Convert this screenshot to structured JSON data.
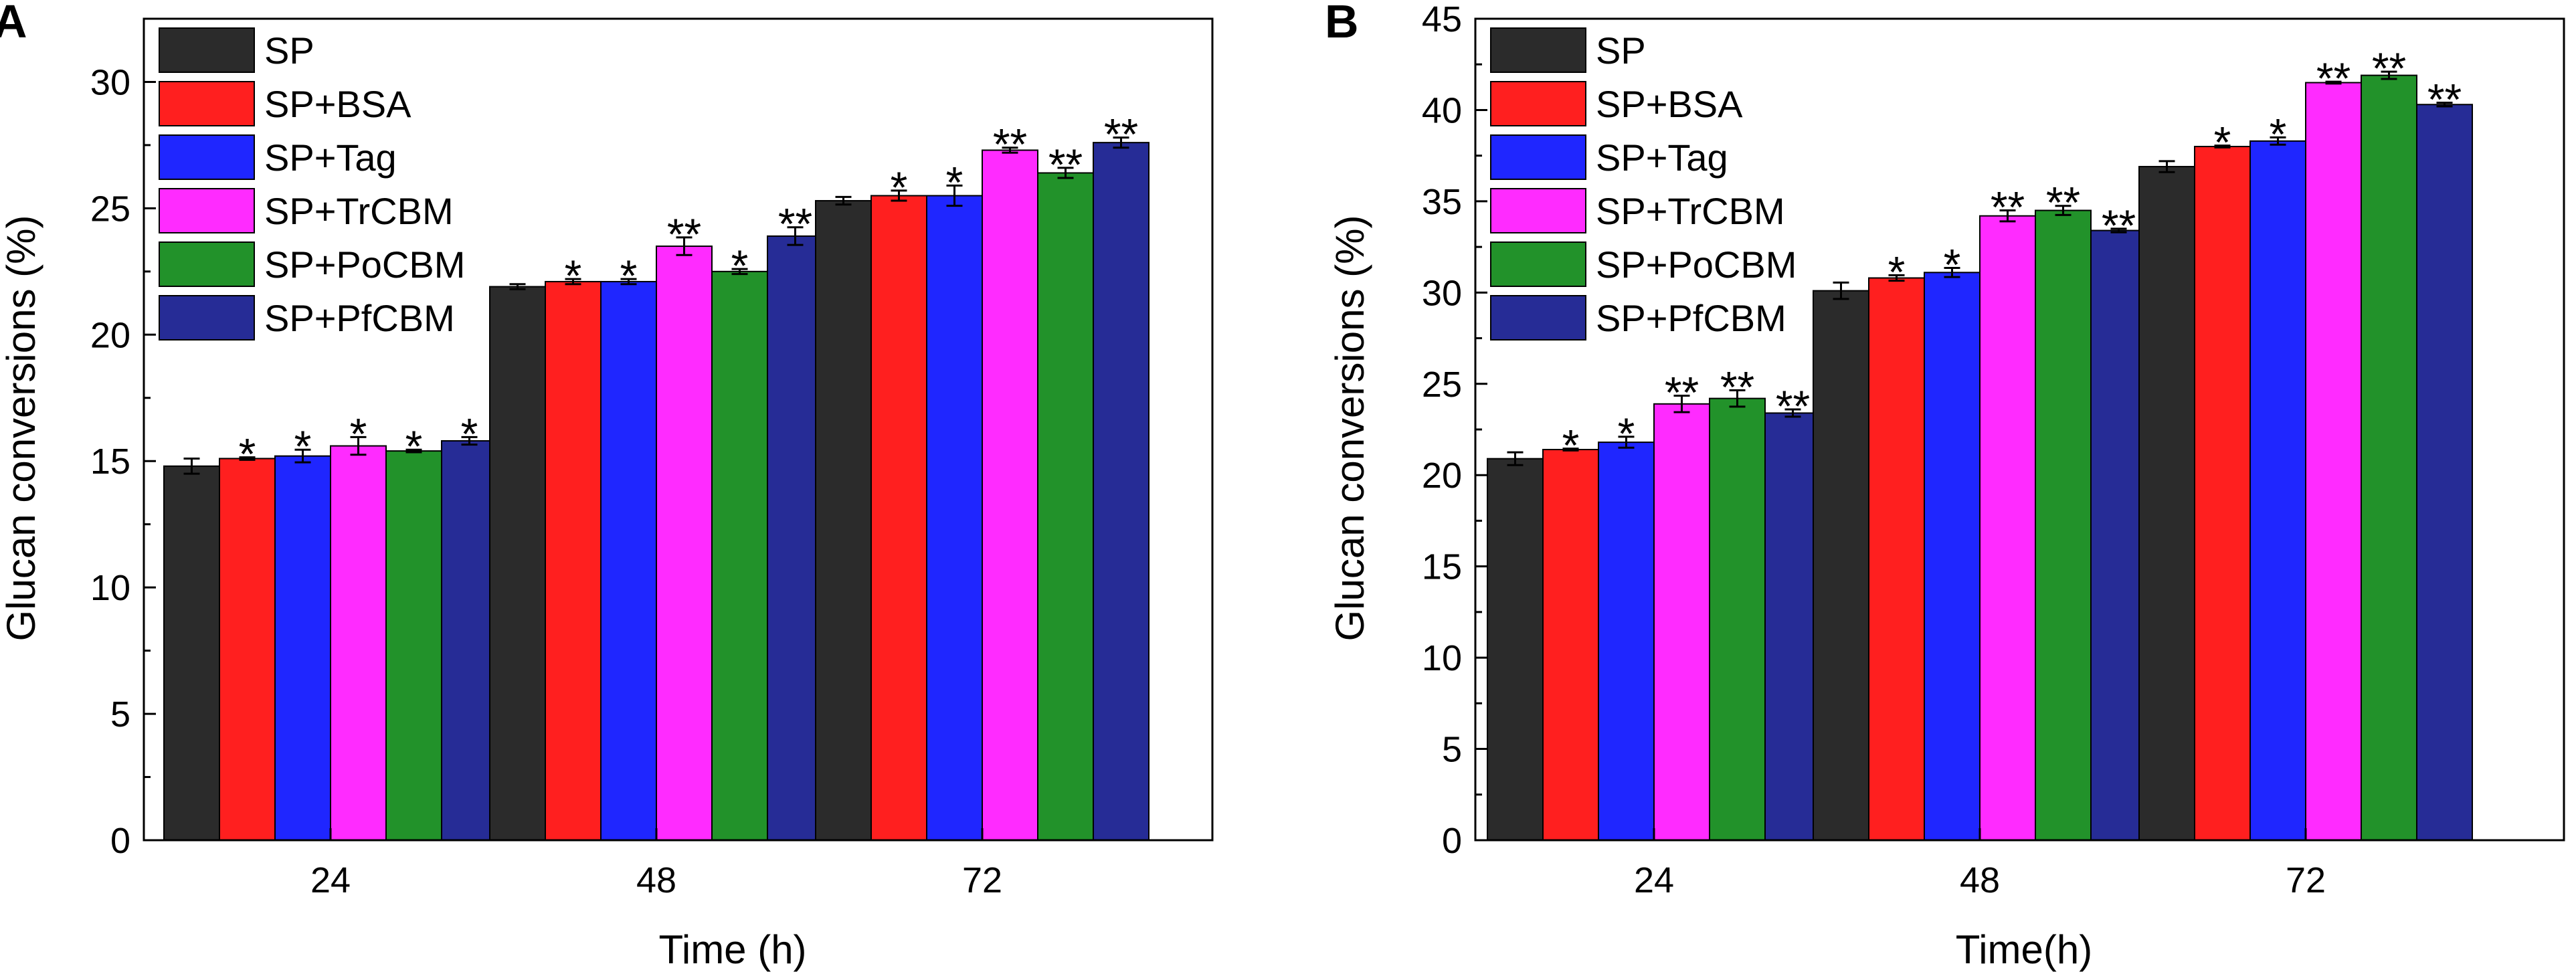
{
  "chart_data": [
    {
      "panel": "A",
      "type": "bar",
      "categories": [
        "24",
        "48",
        "72"
      ],
      "xlabel": "Time (h)",
      "ylabel": "Glucan conversions (%)",
      "ylim": [
        0,
        32.5
      ],
      "yticks": [
        0,
        5,
        10,
        15,
        20,
        25,
        30
      ],
      "legend_position": "top-left",
      "series": [
        {
          "name": "SP",
          "color": "#2b2b2b",
          "values": [
            14.8,
            21.9,
            25.3
          ],
          "errors": [
            0.3,
            0.1,
            0.15
          ],
          "stars": [
            "",
            "",
            ""
          ]
        },
        {
          "name": "SP+BSA",
          "color": "#ff1f1f",
          "values": [
            15.1,
            22.1,
            25.5
          ],
          "errors": [
            0.05,
            0.1,
            0.2
          ],
          "stars": [
            "*",
            "*",
            "*"
          ]
        },
        {
          "name": "SP+Tag",
          "color": "#1f26ff",
          "values": [
            15.2,
            22.1,
            25.5
          ],
          "errors": [
            0.25,
            0.1,
            0.4
          ],
          "stars": [
            "*",
            "*",
            "*"
          ]
        },
        {
          "name": "SP+TrCBM",
          "color": "#ff2bff",
          "values": [
            15.6,
            23.5,
            27.3
          ],
          "errors": [
            0.35,
            0.35,
            0.1
          ],
          "stars": [
            "*",
            "**",
            "**"
          ]
        },
        {
          "name": "SP+PoCBM",
          "color": "#22922a",
          "values": [
            15.4,
            22.5,
            26.4
          ],
          "errors": [
            0.05,
            0.1,
            0.2
          ],
          "stars": [
            "*",
            "*",
            "**"
          ]
        },
        {
          "name": "SP+PfCBM",
          "color": "#262c96",
          "values": [
            15.8,
            23.9,
            27.6
          ],
          "errors": [
            0.15,
            0.35,
            0.2
          ],
          "stars": [
            "*",
            "**",
            "**"
          ]
        }
      ]
    },
    {
      "panel": "B",
      "type": "bar",
      "categories": [
        "24",
        "48",
        "72"
      ],
      "xlabel": "Time(h)",
      "ylabel": "Glucan conversions (%)",
      "ylim": [
        0,
        45
      ],
      "yticks": [
        0,
        5,
        10,
        15,
        20,
        25,
        30,
        35,
        40,
        45
      ],
      "legend_position": "top-left",
      "series": [
        {
          "name": "SP",
          "color": "#2b2b2b",
          "values": [
            20.9,
            30.1,
            36.9
          ],
          "errors": [
            0.35,
            0.45,
            0.3
          ],
          "stars": [
            "",
            "",
            ""
          ]
        },
        {
          "name": "SP+BSA",
          "color": "#ff1f1f",
          "values": [
            21.4,
            30.8,
            38.0
          ],
          "errors": [
            0.05,
            0.15,
            0.05
          ],
          "stars": [
            "*",
            "*",
            "*"
          ]
        },
        {
          "name": "SP+Tag",
          "color": "#1f26ff",
          "values": [
            21.8,
            31.1,
            38.3
          ],
          "errors": [
            0.3,
            0.25,
            0.2
          ],
          "stars": [
            "*",
            "*",
            "*"
          ]
        },
        {
          "name": "SP+TrCBM",
          "color": "#ff2bff",
          "values": [
            23.9,
            34.2,
            41.5
          ],
          "errors": [
            0.45,
            0.3,
            0.05
          ],
          "stars": [
            "**",
            "**",
            "**"
          ]
        },
        {
          "name": "SP+PoCBM",
          "color": "#22922a",
          "values": [
            24.2,
            34.5,
            41.9
          ],
          "errors": [
            0.45,
            0.25,
            0.2
          ],
          "stars": [
            "**",
            "**",
            "**"
          ]
        },
        {
          "name": "SP+PfCBM",
          "color": "#262c96",
          "values": [
            23.4,
            33.4,
            40.3
          ],
          "errors": [
            0.2,
            0.1,
            0.1
          ],
          "stars": [
            "**",
            "**",
            "**"
          ]
        }
      ]
    }
  ]
}
